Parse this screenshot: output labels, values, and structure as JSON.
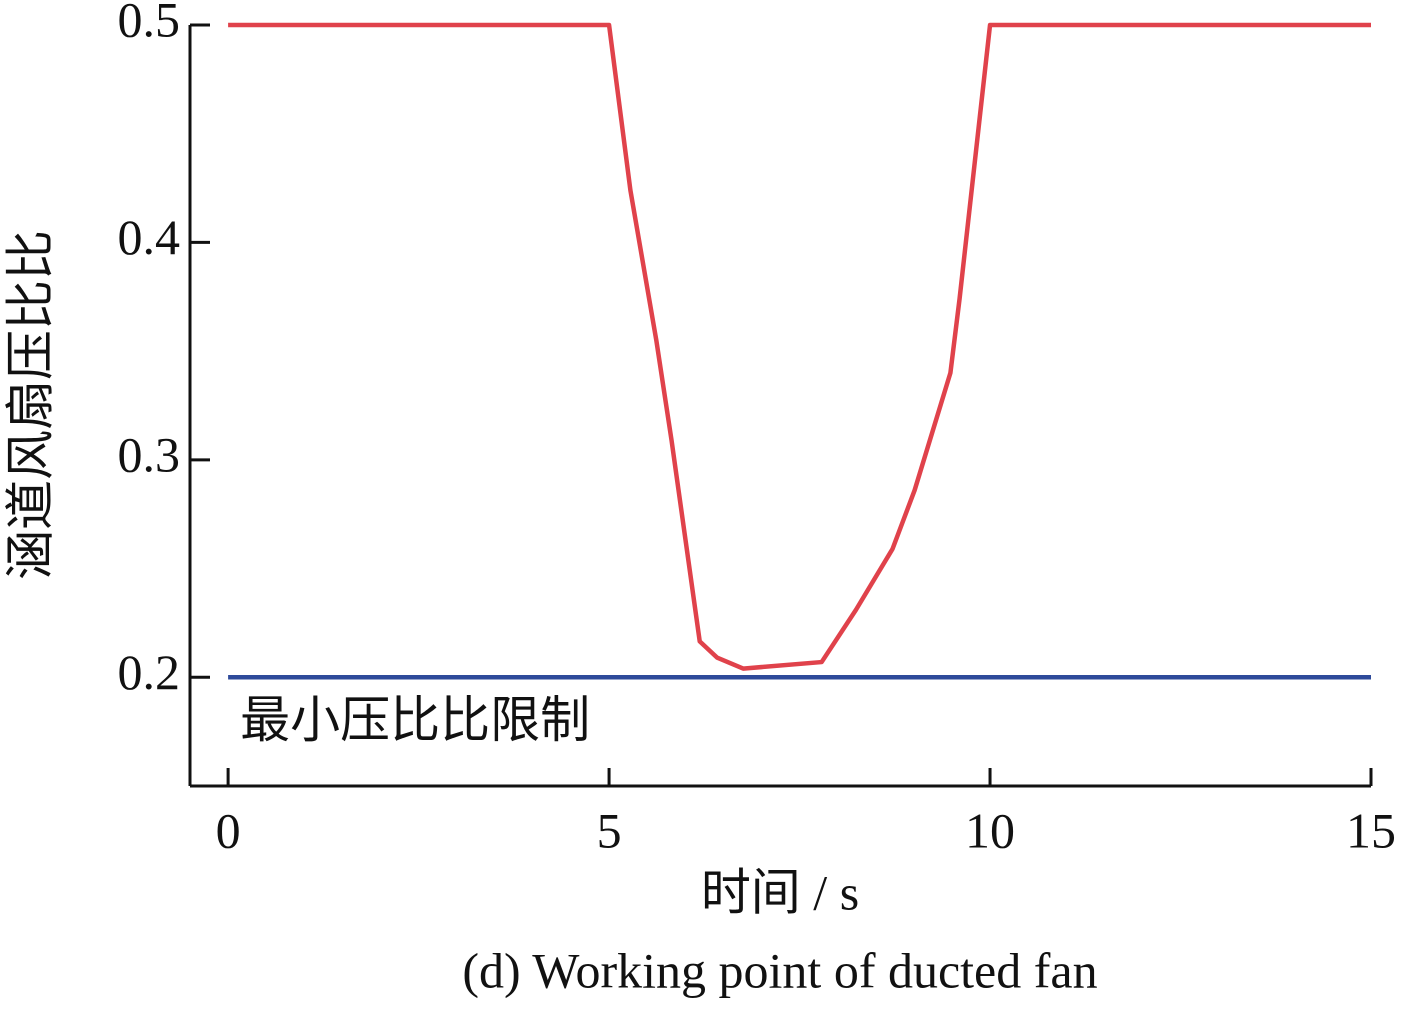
{
  "chart_data": {
    "type": "line",
    "x_label": "时间 / s",
    "y_label": "涵道风扇压比比",
    "caption": "(d) Working point of ducted fan",
    "xlim": [
      -0.5,
      15
    ],
    "xticks": [
      0,
      5,
      10,
      15
    ],
    "ylim": [
      0.15,
      0.5
    ],
    "yticks": [
      0.2,
      0.3,
      0.4,
      0.5
    ],
    "series": [
      {
        "color": "#e0424b",
        "x": [
          0,
          5,
          5.28,
          5.62,
          5.82,
          6.19,
          6.42,
          6.76,
          7.79,
          8.24,
          8.72,
          9.01,
          9.48,
          9.6,
          10,
          15
        ],
        "values": [
          0.5,
          0.5,
          0.424,
          0.355,
          0.309,
          0.2165,
          0.209,
          0.204,
          0.207,
          0.231,
          0.259,
          0.286,
          0.34,
          0.374,
          0.5,
          0.5
        ]
      },
      {
        "name": "最小压比比限制",
        "color": "#2e4a9a",
        "x": [
          0,
          15
        ],
        "values": [
          0.2,
          0.2
        ]
      }
    ]
  }
}
